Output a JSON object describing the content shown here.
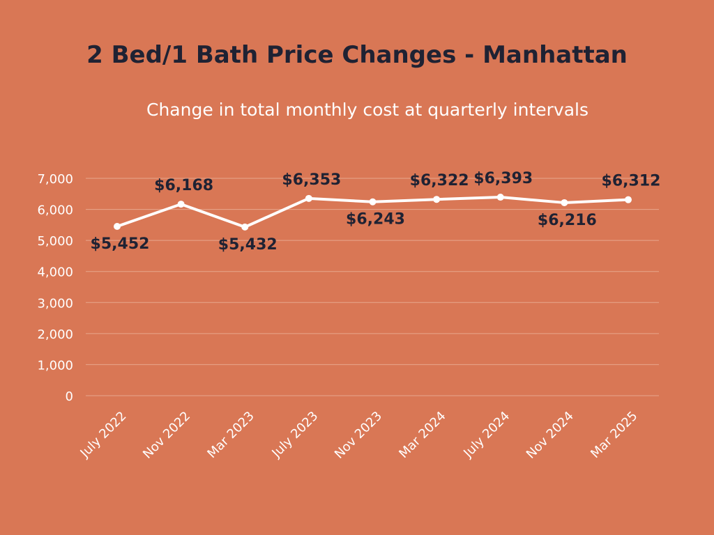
{
  "chart_data": {
    "type": "line",
    "title": "2 Bed/1 Bath Price Changes - Manhattan",
    "subtitle": "Change in total monthly cost at quarterly intervals",
    "categories": [
      "July 2022",
      "Nov 2022",
      "Mar 2023",
      "July 2023",
      "Nov 2023",
      "Mar 2024",
      "July 2024",
      "Nov 2024",
      "Mar 2025"
    ],
    "values": [
      5452,
      6168,
      5432,
      6353,
      6243,
      6322,
      6393,
      6216,
      6312
    ],
    "data_labels": [
      "$5,452",
      "$6,168",
      "$5,432",
      "$6,353",
      "$6,243",
      "$6,322",
      "$6,393",
      "$6,216",
      "$6,312"
    ],
    "label_positions": [
      "below",
      "above",
      "below",
      "above",
      "below",
      "above",
      "above",
      "below",
      "above"
    ],
    "yticks": [
      0,
      1000,
      2000,
      3000,
      4000,
      5000,
      6000,
      7000
    ],
    "ytick_labels": [
      "0",
      "1,000",
      "2,000",
      "3,000",
      "4,000",
      "5,000",
      "6,000",
      "7,000"
    ],
    "ylim": [
      0,
      7000
    ],
    "xlabel": "",
    "ylabel": "",
    "grid": true,
    "colors": {
      "background": "#D97755",
      "line": "#FFFFFF",
      "title": "#1F2233",
      "label": "#1F2233",
      "grid": "#E8A78D"
    }
  }
}
